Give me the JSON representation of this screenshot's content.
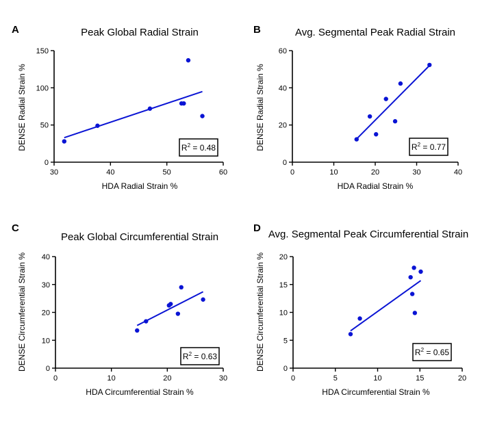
{
  "colors": {
    "marker": "#0a14d4",
    "fit_line": "#0a14d4",
    "axis": "#000000"
  },
  "chart_data": [
    {
      "type": "scatter",
      "panel": "A",
      "title": "Peak Global Radial Strain",
      "xlabel": "HDA Radial Strain %",
      "ylabel": "DENSE Radial Strain %",
      "xlim": [
        30,
        60
      ],
      "ylim": [
        0,
        150
      ],
      "xticks": [
        30,
        40,
        50,
        60
      ],
      "yticks": [
        0,
        50,
        100,
        150
      ],
      "points": [
        [
          31.8,
          28
        ],
        [
          37.7,
          49
        ],
        [
          47,
          72
        ],
        [
          52.6,
          79
        ],
        [
          53,
          79
        ],
        [
          53.8,
          137
        ],
        [
          56.3,
          62
        ]
      ],
      "fit_line": [
        [
          31.8,
          33
        ],
        [
          56.3,
          95
        ]
      ],
      "r2_label": "R",
      "r2_value": " = 0.48"
    },
    {
      "type": "scatter",
      "panel": "B",
      "title": "Avg. Segmental Peak Radial Strain",
      "xlabel": "HDA Radial Strain %",
      "ylabel": "DENSE Radial Strain %",
      "xlim": [
        0,
        40
      ],
      "ylim": [
        0,
        60
      ],
      "xticks": [
        0,
        10,
        20,
        30,
        40
      ],
      "yticks": [
        0,
        20,
        40,
        60
      ],
      "points": [
        [
          15.5,
          12.3
        ],
        [
          18.7,
          24.6
        ],
        [
          20.2,
          15
        ],
        [
          22.6,
          34
        ],
        [
          24.8,
          22
        ],
        [
          26.1,
          42.3
        ],
        [
          33.1,
          52.3
        ]
      ],
      "fit_line": [
        [
          15.5,
          12.5
        ],
        [
          33.1,
          52
        ]
      ],
      "r2_label": "R",
      "r2_value": " = 0.77"
    },
    {
      "type": "scatter",
      "panel": "C",
      "title": "Peak Global Circumferential Strain",
      "xlabel": "HDA Circumferential Strain %",
      "ylabel": "DENSE Circumferential Strain %",
      "xlim": [
        0,
        30
      ],
      "ylim": [
        0,
        40
      ],
      "xticks": [
        0,
        10,
        20,
        30
      ],
      "yticks": [
        0,
        10,
        20,
        30,
        40
      ],
      "points": [
        [
          14.6,
          13.5
        ],
        [
          16.2,
          16.8
        ],
        [
          20.3,
          22.5
        ],
        [
          20.6,
          23
        ],
        [
          21.9,
          19.5
        ],
        [
          22.5,
          29
        ],
        [
          26.4,
          24.6
        ]
      ],
      "fit_line": [
        [
          14.6,
          15.3
        ],
        [
          26.4,
          27.4
        ]
      ],
      "r2_label": "R",
      "r2_value": " = 0.63"
    },
    {
      "type": "scatter",
      "panel": "D",
      "title": "Avg. Segmental Peak Circumferential Strain",
      "xlabel": "HDA Circumferential Strain %",
      "ylabel": "DENSE Circumferential Strain %",
      "xlim": [
        0,
        20
      ],
      "ylim": [
        0,
        20
      ],
      "xticks": [
        0,
        5,
        10,
        15,
        20
      ],
      "yticks": [
        0,
        5,
        10,
        15,
        20
      ],
      "points": [
        [
          6.8,
          6.1
        ],
        [
          7.9,
          8.9
        ],
        [
          13.9,
          16.3
        ],
        [
          14.1,
          13.3
        ],
        [
          14.3,
          18
        ],
        [
          14.4,
          9.9
        ],
        [
          15.1,
          17.3
        ]
      ],
      "fit_line": [
        [
          6.8,
          6.7
        ],
        [
          15.1,
          15.7
        ]
      ],
      "r2_label": "R",
      "r2_value": " = 0.65"
    }
  ]
}
